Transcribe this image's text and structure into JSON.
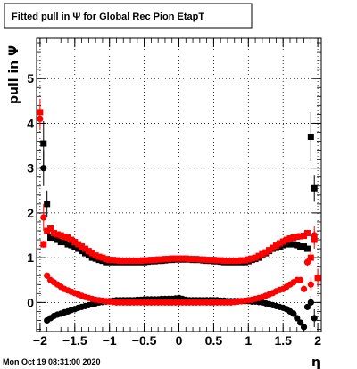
{
  "chart_data": {
    "type": "scatter",
    "title": "Fitted pull in  Ψ  for Global Rec Pion EtapT",
    "xlabel": "η",
    "ylabel": "pull in  Ψ",
    "xlim": [
      -2.05,
      2.05
    ],
    "ylim": [
      -0.65,
      5.9
    ],
    "grid": true,
    "x_ticks": [
      -2,
      -1.5,
      -1,
      -0.5,
      0,
      0.5,
      1,
      1.5,
      2
    ],
    "x_tick_labels": [
      "−2",
      "−1.5",
      "−1",
      "−0.5",
      "0",
      "0.5",
      "1",
      "1.5",
      "2"
    ],
    "y_ticks": [
      0,
      1,
      2,
      3,
      4,
      5
    ],
    "y_tick_labels": [
      "0",
      "1",
      "2",
      "3",
      "4",
      "5"
    ],
    "series": [
      {
        "color": "#000000",
        "marker": "square",
        "description_key": "width",
        "x": [
          -1.95,
          -1.9,
          -1.85,
          -1.8,
          -1.75,
          -1.7,
          -1.65,
          -1.6,
          -1.55,
          -1.5,
          -1.45,
          -1.4,
          -1.35,
          -1.3,
          -1.25,
          -1.2,
          -1.15,
          -1.1,
          -1.05,
          -1.0,
          -0.95,
          -0.9,
          -0.85,
          -0.8,
          -0.75,
          -0.7,
          -0.65,
          -0.6,
          -0.55,
          -0.5,
          -0.45,
          -0.4,
          -0.35,
          -0.3,
          -0.25,
          -0.2,
          -0.15,
          -0.1,
          -0.05,
          0.0,
          0.05,
          0.1,
          0.15,
          0.2,
          0.25,
          0.3,
          0.35,
          0.4,
          0.45,
          0.5,
          0.55,
          0.6,
          0.65,
          0.7,
          0.75,
          0.8,
          0.85,
          0.9,
          0.95,
          1.0,
          1.05,
          1.1,
          1.15,
          1.2,
          1.25,
          1.3,
          1.35,
          1.4,
          1.45,
          1.5,
          1.55,
          1.6,
          1.65,
          1.7,
          1.75,
          1.8,
          1.85,
          1.9,
          1.95
        ],
        "y": [
          3.55,
          2.2,
          1.45,
          1.45,
          1.4,
          1.35,
          1.35,
          1.3,
          1.28,
          1.25,
          1.2,
          1.15,
          1.1,
          1.05,
          1.0,
          0.98,
          0.95,
          0.93,
          0.9,
          0.9,
          0.9,
          0.9,
          0.9,
          0.9,
          0.9,
          0.9,
          0.9,
          0.9,
          0.9,
          0.9,
          0.91,
          0.92,
          0.92,
          0.93,
          0.93,
          0.94,
          0.95,
          0.95,
          0.96,
          0.96,
          0.96,
          0.96,
          0.96,
          0.95,
          0.95,
          0.95,
          0.94,
          0.93,
          0.93,
          0.92,
          0.92,
          0.91,
          0.9,
          0.9,
          0.9,
          0.9,
          0.9,
          0.9,
          0.9,
          0.92,
          0.95,
          0.97,
          1.0,
          1.05,
          1.1,
          1.15,
          1.2,
          1.22,
          1.25,
          1.28,
          1.3,
          1.3,
          1.3,
          1.28,
          1.25,
          1.25,
          1.2,
          3.7,
          2.55
        ],
        "yerr": [
          0.5,
          0.3,
          0.05,
          0.04,
          0.03,
          0.03,
          0.03,
          0.02,
          0.02,
          0.02,
          0.02,
          0.02,
          0.02,
          0.02,
          0.02,
          0.02,
          0.02,
          0.02,
          0.02,
          0.02,
          0.02,
          0.02,
          0.02,
          0.02,
          0.02,
          0.02,
          0.02,
          0.02,
          0.02,
          0.02,
          0.02,
          0.02,
          0.02,
          0.02,
          0.02,
          0.02,
          0.02,
          0.02,
          0.02,
          0.02,
          0.02,
          0.02,
          0.02,
          0.02,
          0.02,
          0.02,
          0.02,
          0.02,
          0.02,
          0.02,
          0.02,
          0.02,
          0.02,
          0.02,
          0.02,
          0.02,
          0.02,
          0.02,
          0.02,
          0.02,
          0.02,
          0.02,
          0.02,
          0.02,
          0.02,
          0.02,
          0.02,
          0.02,
          0.02,
          0.02,
          0.02,
          0.02,
          0.02,
          0.02,
          0.03,
          0.03,
          0.05,
          0.55,
          0.3
        ]
      },
      {
        "color": "#ff0000",
        "marker": "square",
        "x": [
          -2.0,
          -1.95,
          -1.9,
          -1.85,
          -1.8,
          -1.75,
          -1.7,
          -1.65,
          -1.6,
          -1.55,
          -1.5,
          -1.45,
          -1.4,
          -1.35,
          -1.3,
          -1.25,
          -1.2,
          -1.15,
          -1.1,
          -1.05,
          -1.0,
          -0.95,
          -0.9,
          -0.85,
          -0.8,
          -0.75,
          -0.7,
          -0.65,
          -0.6,
          -0.55,
          -0.5,
          -0.45,
          -0.4,
          -0.35,
          -0.3,
          -0.25,
          -0.2,
          -0.15,
          -0.1,
          -0.05,
          0.0,
          0.05,
          0.1,
          0.15,
          0.2,
          0.25,
          0.3,
          0.35,
          0.4,
          0.45,
          0.5,
          0.55,
          0.6,
          0.65,
          0.7,
          0.75,
          0.8,
          0.85,
          0.9,
          0.95,
          1.0,
          1.05,
          1.1,
          1.15,
          1.2,
          1.25,
          1.3,
          1.35,
          1.4,
          1.45,
          1.5,
          1.55,
          1.6,
          1.65,
          1.7,
          1.75,
          1.8,
          1.85,
          1.9,
          1.95,
          2.0
        ],
        "y": [
          4.25,
          1.3,
          1.6,
          1.65,
          1.55,
          1.52,
          1.5,
          1.47,
          1.45,
          1.4,
          1.35,
          1.3,
          1.25,
          1.2,
          1.15,
          1.1,
          1.05,
          1.02,
          1.0,
          0.97,
          0.95,
          0.95,
          0.94,
          0.93,
          0.93,
          0.93,
          0.93,
          0.93,
          0.93,
          0.93,
          0.94,
          0.94,
          0.95,
          0.95,
          0.96,
          0.96,
          0.97,
          0.97,
          0.98,
          0.98,
          0.98,
          0.98,
          0.98,
          0.97,
          0.97,
          0.97,
          0.96,
          0.96,
          0.95,
          0.95,
          0.95,
          0.94,
          0.94,
          0.93,
          0.93,
          0.93,
          0.93,
          0.93,
          0.94,
          0.94,
          0.96,
          0.98,
          1.0,
          1.04,
          1.08,
          1.12,
          1.17,
          1.22,
          1.27,
          1.32,
          1.36,
          1.4,
          1.43,
          1.45,
          1.47,
          1.48,
          1.49,
          1.55,
          1.0,
          1.4,
          0.55
        ],
        "yerr": [
          0.3,
          0.08,
          0.05,
          0.04,
          0.03,
          0.03,
          0.03,
          0.02,
          0.02,
          0.02,
          0.02,
          0.02,
          0.02,
          0.02,
          0.02,
          0.02,
          0.02,
          0.02,
          0.02,
          0.02,
          0.02,
          0.02,
          0.02,
          0.02,
          0.02,
          0.02,
          0.02,
          0.02,
          0.02,
          0.02,
          0.02,
          0.02,
          0.02,
          0.02,
          0.02,
          0.02,
          0.02,
          0.02,
          0.02,
          0.02,
          0.02,
          0.02,
          0.02,
          0.02,
          0.02,
          0.02,
          0.02,
          0.02,
          0.02,
          0.02,
          0.02,
          0.02,
          0.02,
          0.02,
          0.02,
          0.02,
          0.02,
          0.02,
          0.02,
          0.02,
          0.02,
          0.02,
          0.02,
          0.02,
          0.02,
          0.02,
          0.02,
          0.02,
          0.02,
          0.02,
          0.02,
          0.02,
          0.02,
          0.02,
          0.02,
          0.03,
          0.03,
          0.05,
          0.15,
          0.2,
          0.2
        ]
      },
      {
        "color": "#000000",
        "marker": "circle",
        "x": [
          -1.95,
          -1.9,
          -1.85,
          -1.8,
          -1.75,
          -1.7,
          -1.65,
          -1.6,
          -1.55,
          -1.5,
          -1.45,
          -1.4,
          -1.35,
          -1.3,
          -1.25,
          -1.2,
          -1.15,
          -1.1,
          -1.05,
          -1.0,
          -0.95,
          -0.9,
          -0.85,
          -0.8,
          -0.75,
          -0.7,
          -0.65,
          -0.6,
          -0.55,
          -0.5,
          -0.45,
          -0.4,
          -0.35,
          -0.3,
          -0.25,
          -0.2,
          -0.15,
          -0.1,
          -0.05,
          0.0,
          0.05,
          0.1,
          0.15,
          0.2,
          0.25,
          0.3,
          0.35,
          0.4,
          0.45,
          0.5,
          0.55,
          0.6,
          0.65,
          0.7,
          0.75,
          0.8,
          0.85,
          0.9,
          0.95,
          1.0,
          1.05,
          1.1,
          1.15,
          1.2,
          1.25,
          1.3,
          1.35,
          1.4,
          1.45,
          1.5,
          1.55,
          1.6,
          1.65,
          1.7,
          1.75,
          1.8,
          1.85,
          1.9,
          1.95
        ],
        "y": [
          3.0,
          -0.4,
          -0.35,
          -0.3,
          -0.27,
          -0.25,
          -0.22,
          -0.2,
          -0.17,
          -0.15,
          -0.12,
          -0.1,
          -0.08,
          -0.06,
          -0.04,
          -0.02,
          0.0,
          0.01,
          0.02,
          0.03,
          0.04,
          0.05,
          0.05,
          0.05,
          0.05,
          0.05,
          0.05,
          0.06,
          0.06,
          0.07,
          0.07,
          0.07,
          0.07,
          0.07,
          0.08,
          0.08,
          0.08,
          0.08,
          0.09,
          0.1,
          0.08,
          0.06,
          0.05,
          0.05,
          0.05,
          0.05,
          0.05,
          0.05,
          0.05,
          0.05,
          0.05,
          0.04,
          0.04,
          0.03,
          0.03,
          0.03,
          0.03,
          0.03,
          0.03,
          0.03,
          0.02,
          0.02,
          0.01,
          0.0,
          -0.02,
          -0.04,
          -0.06,
          -0.08,
          -0.1,
          -0.12,
          -0.15,
          -0.2,
          -0.25,
          -0.35,
          -0.45,
          -0.55,
          -0.1,
          0.0,
          -0.35
        ],
        "yerr": [
          0.4,
          0.06,
          0.04,
          0.03,
          0.03,
          0.02,
          0.02,
          0.02,
          0.02,
          0.02,
          0.02,
          0.02,
          0.02,
          0.02,
          0.02,
          0.02,
          0.02,
          0.02,
          0.02,
          0.02,
          0.02,
          0.02,
          0.02,
          0.02,
          0.02,
          0.02,
          0.02,
          0.02,
          0.02,
          0.02,
          0.02,
          0.02,
          0.02,
          0.02,
          0.02,
          0.02,
          0.02,
          0.02,
          0.02,
          0.02,
          0.02,
          0.02,
          0.02,
          0.02,
          0.02,
          0.02,
          0.02,
          0.02,
          0.02,
          0.02,
          0.02,
          0.02,
          0.02,
          0.02,
          0.02,
          0.02,
          0.02,
          0.02,
          0.02,
          0.02,
          0.02,
          0.02,
          0.02,
          0.02,
          0.02,
          0.02,
          0.02,
          0.02,
          0.02,
          0.02,
          0.02,
          0.02,
          0.02,
          0.03,
          0.03,
          0.04,
          0.06,
          0.15,
          0.2
        ]
      },
      {
        "color": "#ff0000",
        "marker": "circle",
        "x": [
          -2.0,
          -1.95,
          -1.9,
          -1.85,
          -1.8,
          -1.75,
          -1.7,
          -1.65,
          -1.6,
          -1.55,
          -1.5,
          -1.45,
          -1.4,
          -1.35,
          -1.3,
          -1.25,
          -1.2,
          -1.15,
          -1.1,
          -1.05,
          -1.0,
          -0.95,
          -0.9,
          -0.85,
          -0.8,
          -0.75,
          -0.7,
          -0.65,
          -0.6,
          -0.55,
          -0.5,
          -0.45,
          -0.4,
          -0.35,
          -0.3,
          -0.25,
          -0.2,
          -0.15,
          -0.1,
          -0.05,
          0.0,
          0.05,
          0.1,
          0.15,
          0.2,
          0.25,
          0.3,
          0.35,
          0.4,
          0.45,
          0.5,
          0.55,
          0.6,
          0.65,
          0.7,
          0.75,
          0.8,
          0.85,
          0.9,
          0.95,
          1.0,
          1.05,
          1.1,
          1.15,
          1.2,
          1.25,
          1.3,
          1.35,
          1.4,
          1.45,
          1.5,
          1.55,
          1.6,
          1.65,
          1.7,
          1.75,
          1.8,
          1.85,
          1.9,
          1.95,
          2.0
        ],
        "y": [
          4.1,
          1.9,
          0.6,
          0.5,
          0.45,
          0.4,
          0.35,
          0.3,
          0.27,
          0.24,
          0.21,
          0.18,
          0.15,
          0.12,
          0.1,
          0.08,
          0.06,
          0.05,
          0.04,
          0.03,
          0.02,
          0.01,
          0.0,
          0.0,
          0.0,
          0.0,
          0.0,
          0.0,
          0.0,
          0.0,
          0.0,
          0.0,
          0.0,
          0.0,
          0.0,
          0.0,
          0.0,
          0.0,
          0.0,
          0.0,
          0.0,
          0.0,
          0.0,
          0.0,
          0.0,
          0.0,
          0.0,
          0.0,
          0.0,
          0.0,
          0.0,
          0.0,
          0.0,
          0.0,
          0.0,
          0.0,
          0.01,
          0.02,
          0.03,
          0.04,
          0.05,
          0.06,
          0.08,
          0.1,
          0.12,
          0.15,
          0.18,
          0.21,
          0.25,
          0.28,
          0.3,
          0.35,
          0.4,
          0.45,
          0.5,
          0.5,
          0.3,
          0.9,
          0.4,
          1.5,
          0.55
        ],
        "yerr": [
          0.25,
          0.3,
          0.05,
          0.04,
          0.03,
          0.03,
          0.03,
          0.02,
          0.02,
          0.02,
          0.02,
          0.02,
          0.02,
          0.02,
          0.02,
          0.02,
          0.02,
          0.02,
          0.02,
          0.02,
          0.02,
          0.02,
          0.02,
          0.02,
          0.02,
          0.02,
          0.02,
          0.02,
          0.02,
          0.02,
          0.02,
          0.02,
          0.02,
          0.02,
          0.02,
          0.02,
          0.02,
          0.02,
          0.02,
          0.02,
          0.02,
          0.02,
          0.02,
          0.02,
          0.02,
          0.02,
          0.02,
          0.02,
          0.02,
          0.02,
          0.02,
          0.02,
          0.02,
          0.02,
          0.02,
          0.02,
          0.02,
          0.02,
          0.02,
          0.02,
          0.02,
          0.02,
          0.02,
          0.02,
          0.02,
          0.02,
          0.02,
          0.02,
          0.02,
          0.02,
          0.02,
          0.02,
          0.02,
          0.02,
          0.02,
          0.03,
          0.04,
          0.1,
          0.15,
          0.2,
          0.2
        ]
      }
    ]
  },
  "footer": {
    "timestamp": "Mon Oct 19 08:31:00 2020"
  }
}
